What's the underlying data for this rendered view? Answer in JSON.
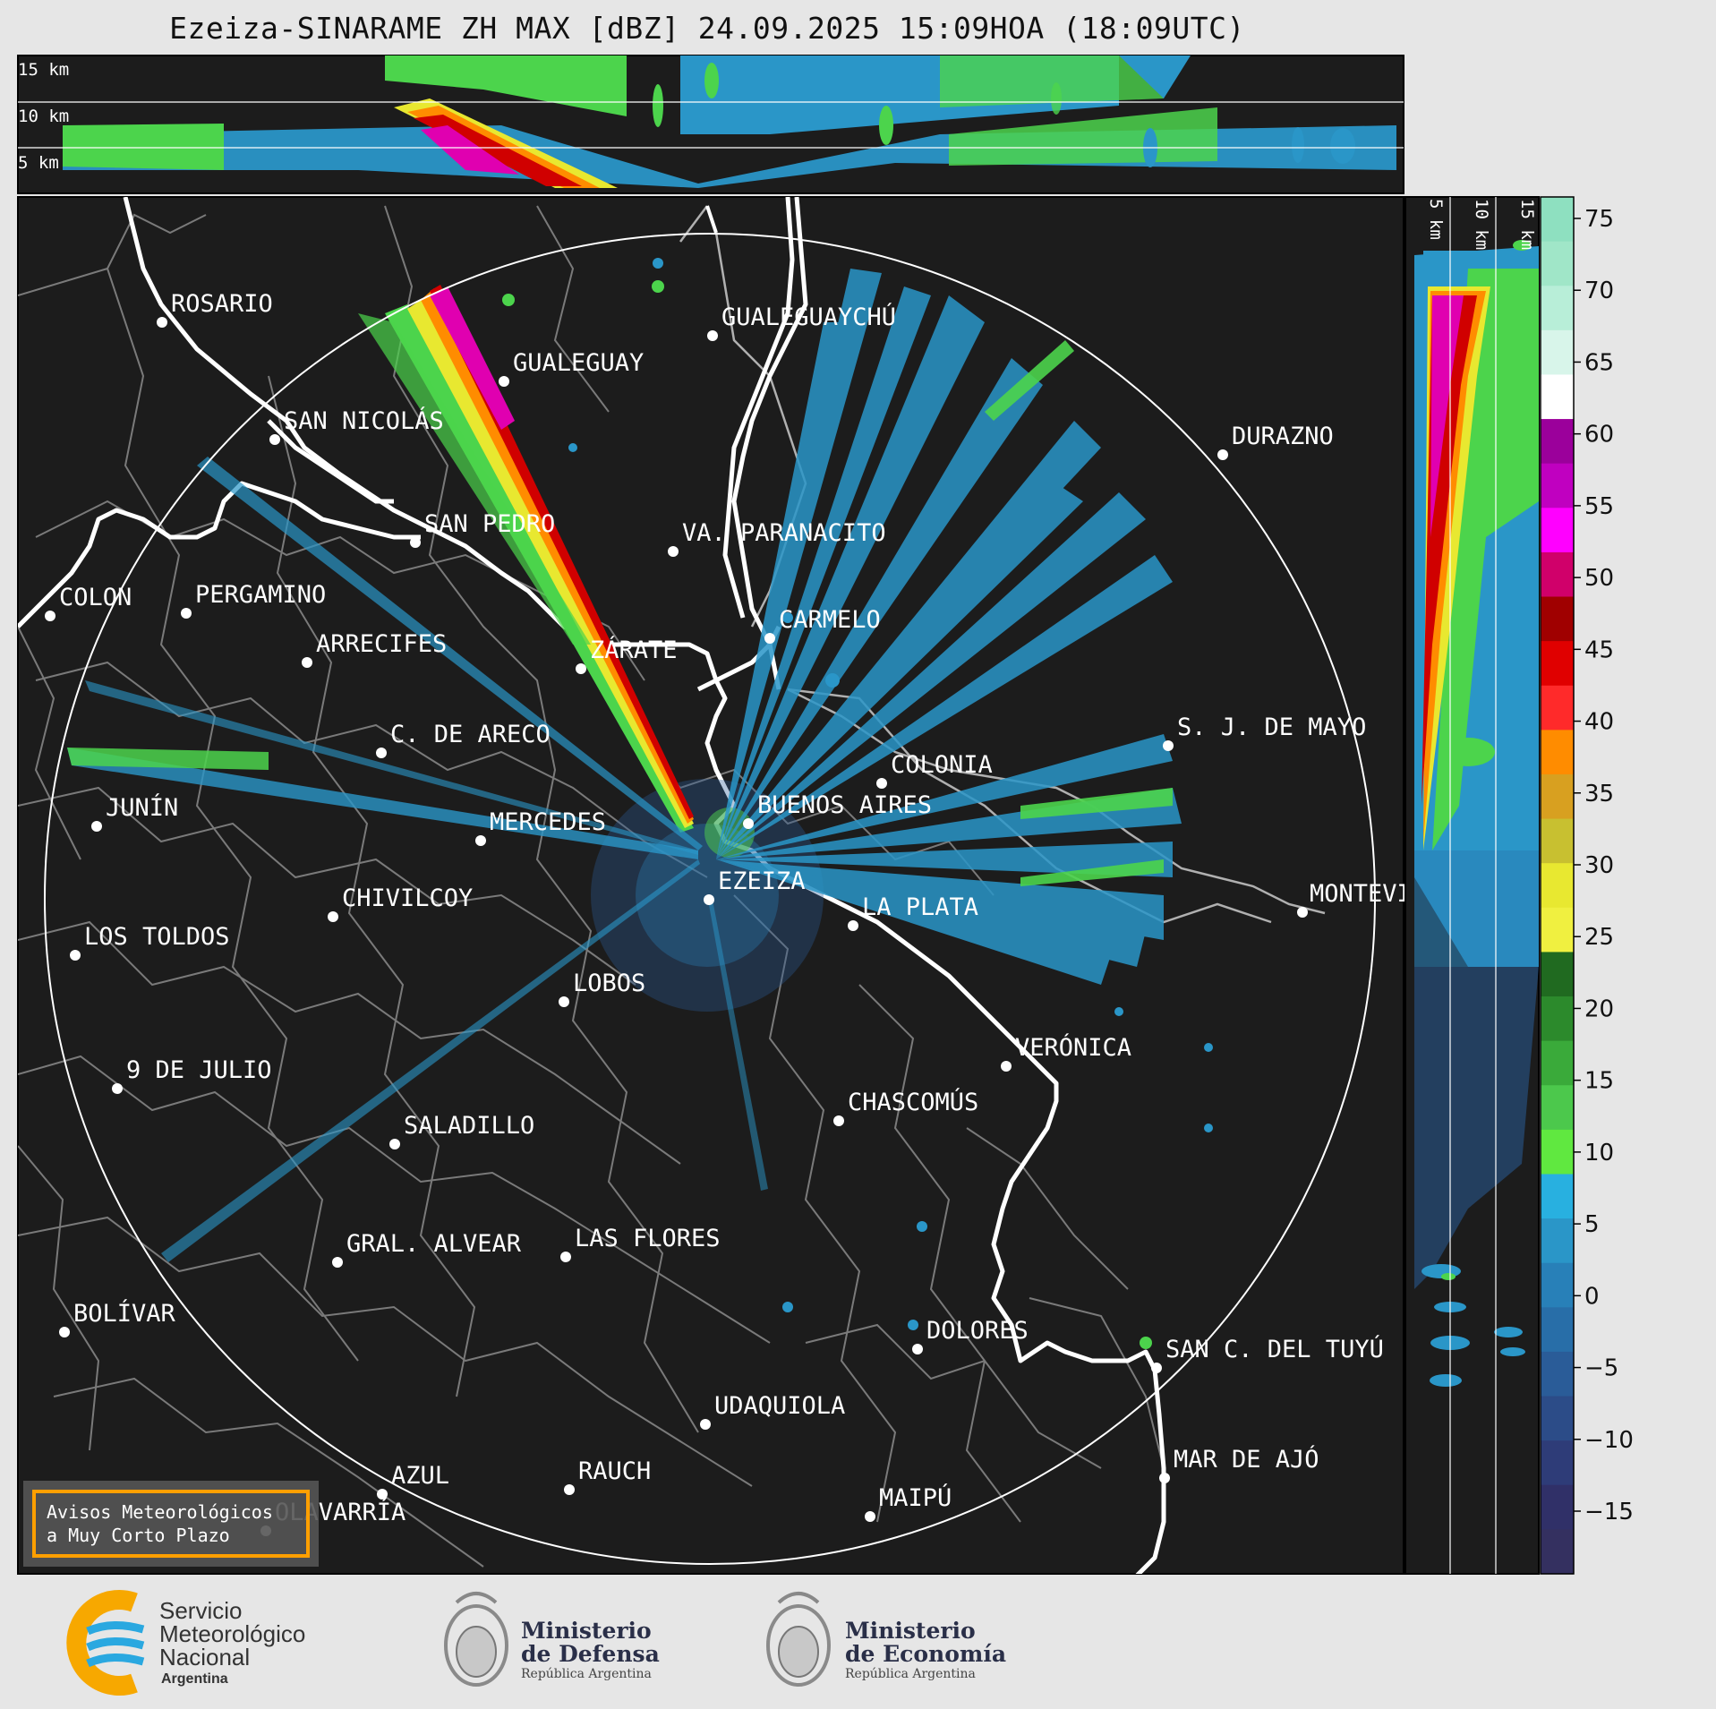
{
  "title": "Ezeiza-SINARAME ZH MAX [dBZ] 24.09.2025 15:09HOA (18:09UTC)",
  "top_panel": {
    "height_labels": [
      "15 km",
      "10 km",
      "5 km"
    ]
  },
  "side_panel": {
    "height_labels": [
      "5 km",
      "10 km",
      "15 km"
    ]
  },
  "colorbar": {
    "tick_labels": [
      "75",
      "70",
      "65",
      "60",
      "55",
      "50",
      "45",
      "40",
      "35",
      "30",
      "25",
      "20",
      "15",
      "10",
      "5",
      "0",
      "−5",
      "−10",
      "−15"
    ],
    "colors": [
      "#8ee0c0",
      "#a0e6c8",
      "#b8eed8",
      "#d8f5ea",
      "#ffffff",
      "#9b009b",
      "#c000c0",
      "#ff00ff",
      "#d0006a",
      "#a00000",
      "#e00000",
      "#ff2a2a",
      "#ff8c00",
      "#d8a020",
      "#c8c030",
      "#e8e830",
      "#f0f040",
      "#206a20",
      "#2c8a2c",
      "#3aaa3a",
      "#4cc84c",
      "#60e840",
      "#28b0e0",
      "#2a96c8",
      "#2880b8",
      "#286ea8",
      "#2a5c98",
      "#2c4c88",
      "#2e3c78",
      "#303068",
      "#343060"
    ]
  },
  "map": {
    "range_ring": "circular range ring",
    "cities": [
      {
        "name": "ROSARIO"
      },
      {
        "name": "GUALEGUAYCHÚ"
      },
      {
        "name": "GUALEGUAY"
      },
      {
        "name": "SAN NICOLÁS"
      },
      {
        "name": "DURAZNO"
      },
      {
        "name": "SAN PEDRO"
      },
      {
        "name": "VA. PARANACITO"
      },
      {
        "name": "COLON"
      },
      {
        "name": "PERGAMINO"
      },
      {
        "name": "CARMELO"
      },
      {
        "name": "ARRECIFES"
      },
      {
        "name": "ZÁRATE"
      },
      {
        "name": "C. DE ARECO"
      },
      {
        "name": "S. J. DE MAYO"
      },
      {
        "name": "COLONIA"
      },
      {
        "name": "JUNÍN"
      },
      {
        "name": "BUENOS AIRES"
      },
      {
        "name": "MERCEDES"
      },
      {
        "name": "EZEIZA"
      },
      {
        "name": "MONTEVIDEO"
      },
      {
        "name": "CHIVILCOY"
      },
      {
        "name": "LA PLATA"
      },
      {
        "name": "LOS TOLDOS"
      },
      {
        "name": "LOBOS"
      },
      {
        "name": "VERÓNICA"
      },
      {
        "name": "9 DE JULIO"
      },
      {
        "name": "CHASCOMÚS"
      },
      {
        "name": "SALADILLO"
      },
      {
        "name": "GRAL. ALVEAR"
      },
      {
        "name": "LAS FLORES"
      },
      {
        "name": "BOLÍVAR"
      },
      {
        "name": "DOLORES"
      },
      {
        "name": "SAN C. DEL TUYÚ"
      },
      {
        "name": "UDAQUIOLA"
      },
      {
        "name": "MAR DE AJÓ"
      },
      {
        "name": "AZUL"
      },
      {
        "name": "RAUCH"
      },
      {
        "name": "MAIPÚ"
      },
      {
        "name": "OLAVARRÍA"
      }
    ]
  },
  "warning_box": {
    "line1": "Avisos Meteorológicos",
    "line2": "a Muy Corto Plazo"
  },
  "footer": {
    "smn": {
      "line1": "Servicio",
      "line2": "Meteorológico",
      "line3": "Nacional",
      "line4": "Argentina"
    },
    "defensa": {
      "line1": "Ministerio",
      "line2": "de Defensa",
      "line3": "República Argentina"
    },
    "economia": {
      "line1": "Ministerio",
      "line2": "de Economía",
      "line3": "República Argentina"
    }
  }
}
